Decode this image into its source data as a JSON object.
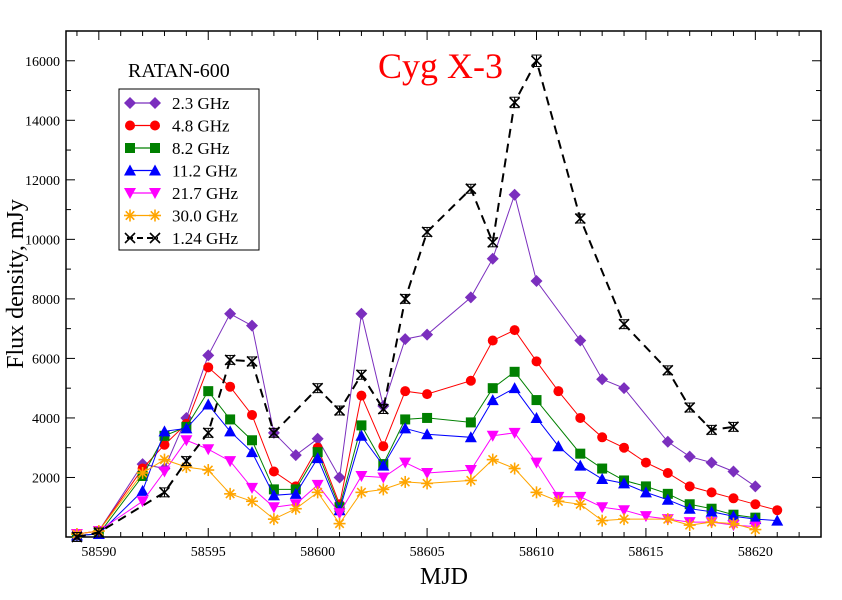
{
  "chart_data": {
    "type": "line",
    "title": "Cyg X-3",
    "title_color": "#ff0000",
    "annotation": "RATAN-600",
    "xlabel": "MJD",
    "ylabel": "Flux density, mJy",
    "xlim": [
      58588.5,
      58623
    ],
    "ylim": [
      0,
      17000
    ],
    "xticks": [
      58590,
      58595,
      58600,
      58605,
      58610,
      58615,
      58620
    ],
    "yticks": [
      2000,
      4000,
      6000,
      8000,
      10000,
      12000,
      14000,
      16000
    ],
    "legend_position": "top-left",
    "grid": false,
    "series": [
      {
        "name": "2.3 GHz",
        "color": "#7b2fbe",
        "marker": "diamond",
        "dash": false,
        "x": [
          58589,
          58590,
          58592,
          58593,
          58594,
          58595,
          58596,
          58597,
          58598,
          58599,
          58600,
          58601,
          58602,
          58603,
          58604,
          58605,
          58607,
          58608,
          58609,
          58610,
          58612,
          58613,
          58614,
          58616,
          58617,
          58618,
          58619,
          58620
        ],
        "y": [
          100,
          200,
          2450,
          2300,
          4000,
          6100,
          7500,
          7100,
          3500,
          2750,
          3300,
          2000,
          7500,
          4400,
          6650,
          6800,
          8050,
          9350,
          11500,
          8600,
          6600,
          5300,
          5000,
          3200,
          2700,
          2500,
          2200,
          1700
        ]
      },
      {
        "name": "4.8 GHz",
        "color": "#ff0000",
        "marker": "circle",
        "dash": false,
        "x": [
          58589,
          58590,
          58592,
          58593,
          58594,
          58595,
          58596,
          58597,
          58598,
          58599,
          58600,
          58601,
          58602,
          58603,
          58604,
          58605,
          58607,
          58608,
          58609,
          58610,
          58611,
          58612,
          58613,
          58614,
          58615,
          58616,
          58617,
          58618,
          58619,
          58620,
          58621
        ],
        "y": [
          100,
          200,
          2300,
          3100,
          3800,
          5700,
          5050,
          4100,
          2200,
          1700,
          3000,
          1100,
          4750,
          3050,
          4900,
          4800,
          5250,
          6600,
          6950,
          5900,
          4900,
          4000,
          3350,
          3000,
          2500,
          2150,
          1700,
          1500,
          1300,
          1100,
          900
        ]
      },
      {
        "name": "8.2 GHz",
        "color": "#008000",
        "marker": "square",
        "dash": false,
        "x": [
          58589,
          58590,
          58592,
          58593,
          58594,
          58595,
          58596,
          58597,
          58598,
          58599,
          58600,
          58601,
          58602,
          58603,
          58604,
          58605,
          58607,
          58608,
          58609,
          58610,
          58612,
          58613,
          58614,
          58615,
          58616,
          58617,
          58618,
          58619,
          58620
        ],
        "y": [
          50,
          100,
          2050,
          3400,
          3700,
          4900,
          3950,
          3250,
          1600,
          1600,
          2850,
          1000,
          3750,
          2450,
          3950,
          4000,
          3850,
          5000,
          5550,
          4600,
          2800,
          2300,
          1900,
          1700,
          1450,
          1100,
          950,
          750,
          650
        ]
      },
      {
        "name": "11.2 GHz",
        "color": "#0000ff",
        "marker": "triangle-up",
        "dash": false,
        "x": [
          58589,
          58590,
          58592,
          58593,
          58594,
          58595,
          58596,
          58597,
          58598,
          58599,
          58600,
          58601,
          58602,
          58603,
          58604,
          58605,
          58607,
          58608,
          58609,
          58610,
          58611,
          58612,
          58613,
          58614,
          58615,
          58616,
          58617,
          58618,
          58619,
          58620,
          58621
        ],
        "y": [
          50,
          100,
          1550,
          3550,
          3650,
          4450,
          3550,
          2850,
          1400,
          1450,
          2650,
          900,
          3400,
          2400,
          3650,
          3450,
          3350,
          4600,
          5000,
          4000,
          3050,
          2400,
          1950,
          1800,
          1500,
          1250,
          950,
          850,
          700,
          600,
          550
        ]
      },
      {
        "name": "21.7 GHz",
        "color": "#ff00ff",
        "marker": "triangle-down",
        "dash": false,
        "x": [
          58589,
          58590,
          58592,
          58593,
          58594,
          58595,
          58596,
          58597,
          58598,
          58599,
          58600,
          58601,
          58602,
          58603,
          58604,
          58605,
          58607,
          58608,
          58609,
          58610,
          58611,
          58612,
          58613,
          58614,
          58615,
          58616,
          58617,
          58618,
          58619,
          58620
        ],
        "y": [
          100,
          200,
          1200,
          2200,
          3250,
          2950,
          2550,
          1650,
          1000,
          1100,
          1750,
          800,
          2050,
          2000,
          2500,
          2150,
          2250,
          3400,
          3500,
          2500,
          1350,
          1350,
          1000,
          900,
          700,
          600,
          500,
          500,
          400,
          350
        ]
      },
      {
        "name": "30.0 GHz",
        "color": "#ffa500",
        "marker": "asterisk",
        "dash": false,
        "x": [
          58589,
          58590,
          58592,
          58593,
          58594,
          58595,
          58596,
          58597,
          58598,
          58599,
          58600,
          58601,
          58602,
          58603,
          58604,
          58605,
          58607,
          58608,
          58609,
          58610,
          58611,
          58612,
          58613,
          58614,
          58616,
          58617,
          58618,
          58619,
          58620
        ],
        "y": [
          100,
          200,
          2150,
          2600,
          2350,
          2250,
          1450,
          1200,
          600,
          950,
          1500,
          450,
          1500,
          1600,
          1850,
          1800,
          1900,
          2600,
          2300,
          1500,
          1200,
          1100,
          550,
          600,
          600,
          400,
          500,
          450,
          250
        ]
      },
      {
        "name": "1.24 GHz",
        "color": "#000000",
        "marker": "x",
        "dash": true,
        "errorbars": true,
        "x": [
          58589,
          58590,
          58593,
          58594,
          58595,
          58596,
          58597,
          58598,
          58600,
          58601,
          58602,
          58603,
          58604,
          58605,
          58607,
          58608,
          58609,
          58610,
          58612,
          58614,
          58616,
          58617,
          58618,
          58619
        ],
        "y": [
          0,
          150,
          1500,
          2550,
          3500,
          5950,
          5900,
          3500,
          5000,
          4250,
          5450,
          4300,
          8000,
          10250,
          11700,
          9900,
          14600,
          16000,
          10700,
          7150,
          5600,
          4350,
          3600,
          3700
        ]
      }
    ]
  }
}
